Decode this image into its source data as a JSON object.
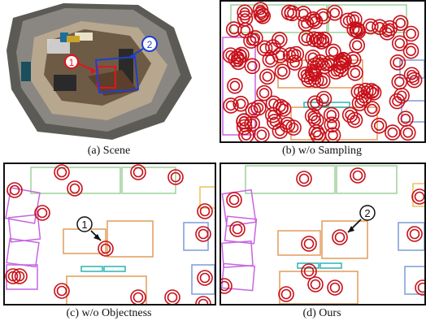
{
  "figure": {
    "panels": [
      {
        "id": "a",
        "caption": "(a) Scene"
      },
      {
        "id": "b",
        "caption": "(b) w/o Sampling"
      },
      {
        "id": "c",
        "caption": "(c) w/o Objectness"
      },
      {
        "id": "d",
        "caption": "(d) Ours"
      }
    ],
    "markers": {
      "one": "①",
      "two": "②"
    },
    "colors": {
      "ring": "#c8101a",
      "box_green": "#9fd19a",
      "box_orange": "#e39b5a",
      "box_violet": "#c765e0",
      "box_blue": "#7d9bd8",
      "box_cyan": "#2bb3b3",
      "box_yellow": "#e8c35a",
      "scene_marker_1": "#e0141c",
      "scene_marker_2": "#1f3fd1"
    }
  }
}
